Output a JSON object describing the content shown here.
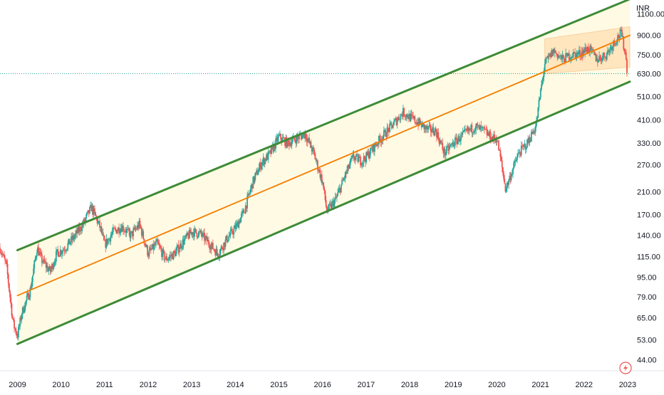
{
  "chart_data": {
    "type": "candlestick",
    "currency": "INR",
    "y_scale": "log",
    "ylim": [
      40,
      1250
    ],
    "xlim": [
      2008.6,
      2023.05
    ],
    "y_ticks": [
      44,
      53,
      65,
      79,
      95,
      115,
      140,
      170,
      210,
      270,
      330,
      410,
      510,
      630,
      750,
      900,
      1100
    ],
    "y_tick_labels": [
      "44.00",
      "53.00",
      "65.00",
      "79.00",
      "95.00",
      "115.00",
      "140.00",
      "170.00",
      "210.00",
      "270.00",
      "330.00",
      "410.00",
      "510.00",
      "630.00",
      "750.00",
      "900.00",
      "1100.00"
    ],
    "x_ticks": [
      2009,
      2010,
      2011,
      2012,
      2013,
      2014,
      2015,
      2016,
      2017,
      2018,
      2019,
      2020,
      2021,
      2022,
      2023
    ],
    "x_tick_labels": [
      "2009",
      "2010",
      "2011",
      "2012",
      "2013",
      "2014",
      "2015",
      "2016",
      "2017",
      "2018",
      "2019",
      "2020",
      "2021",
      "2022",
      "2023"
    ],
    "grid": false,
    "colors": {
      "up": "#26a69a",
      "down": "#ef5350",
      "channel_line": "#3d8b37",
      "channel_fill": "#fff9e0",
      "mid_line": "#f57c00",
      "sub_channel_fill": "#ffe0b2",
      "sub_channel_line": "#f5c28a",
      "current_price_line": "#26a69a",
      "text": "#131722"
    },
    "price_path": [
      [
        2008.6,
        125
      ],
      [
        2008.75,
        105
      ],
      [
        2008.9,
        62
      ],
      [
        2009.0,
        55
      ],
      [
        2009.1,
        68
      ],
      [
        2009.3,
        85
      ],
      [
        2009.45,
        125
      ],
      [
        2009.55,
        112
      ],
      [
        2009.75,
        100
      ],
      [
        2009.9,
        118
      ],
      [
        2010.1,
        125
      ],
      [
        2010.3,
        138
      ],
      [
        2010.5,
        155
      ],
      [
        2010.7,
        182
      ],
      [
        2010.9,
        150
      ],
      [
        2011.0,
        128
      ],
      [
        2011.2,
        145
      ],
      [
        2011.4,
        152
      ],
      [
        2011.6,
        140
      ],
      [
        2011.8,
        155
      ],
      [
        2012.0,
        118
      ],
      [
        2012.2,
        130
      ],
      [
        2012.4,
        112
      ],
      [
        2012.6,
        118
      ],
      [
        2012.8,
        132
      ],
      [
        2013.0,
        145
      ],
      [
        2013.2,
        142
      ],
      [
        2013.4,
        130
      ],
      [
        2013.6,
        118
      ],
      [
        2013.8,
        135
      ],
      [
        2014.0,
        150
      ],
      [
        2014.2,
        175
      ],
      [
        2014.4,
        230
      ],
      [
        2014.6,
        275
      ],
      [
        2014.8,
        300
      ],
      [
        2015.0,
        350
      ],
      [
        2015.2,
        330
      ],
      [
        2015.4,
        345
      ],
      [
        2015.6,
        360
      ],
      [
        2015.8,
        300
      ],
      [
        2016.0,
        230
      ],
      [
        2016.1,
        175
      ],
      [
        2016.3,
        195
      ],
      [
        2016.5,
        240
      ],
      [
        2016.7,
        290
      ],
      [
        2016.9,
        280
      ],
      [
        2017.0,
        290
      ],
      [
        2017.3,
        340
      ],
      [
        2017.6,
        390
      ],
      [
        2017.85,
        440
      ],
      [
        2018.0,
        420
      ],
      [
        2018.2,
        400
      ],
      [
        2018.4,
        375
      ],
      [
        2018.6,
        370
      ],
      [
        2018.8,
        300
      ],
      [
        2019.0,
        330
      ],
      [
        2019.3,
        365
      ],
      [
        2019.5,
        385
      ],
      [
        2019.7,
        370
      ],
      [
        2019.9,
        345
      ],
      [
        2020.0,
        345
      ],
      [
        2020.1,
        275
      ],
      [
        2020.2,
        215
      ],
      [
        2020.35,
        255
      ],
      [
        2020.5,
        300
      ],
      [
        2020.7,
        330
      ],
      [
        2020.9,
        390
      ],
      [
        2021.0,
        530
      ],
      [
        2021.1,
        690
      ],
      [
        2021.3,
        780
      ],
      [
        2021.5,
        720
      ],
      [
        2021.7,
        750
      ],
      [
        2021.9,
        760
      ],
      [
        2022.1,
        800
      ],
      [
        2022.3,
        720
      ],
      [
        2022.5,
        750
      ],
      [
        2022.7,
        850
      ],
      [
        2022.85,
        920
      ],
      [
        2022.95,
        760
      ],
      [
        2023.0,
        620
      ]
    ],
    "channel_upper": [
      [
        2009.0,
        122
      ],
      [
        2023.05,
        1260
      ]
    ],
    "channel_lower": [
      [
        2009.0,
        51
      ],
      [
        2023.05,
        585
      ]
    ],
    "channel_mid": [
      [
        2009.0,
        80
      ],
      [
        2023.05,
        900
      ]
    ],
    "sub_channel_upper": [
      [
        2021.1,
        870
      ],
      [
        2023.05,
        975
      ]
    ],
    "sub_channel_lower": [
      [
        2021.1,
        630
      ],
      [
        2023.05,
        670
      ]
    ],
    "current_price": 630
  }
}
